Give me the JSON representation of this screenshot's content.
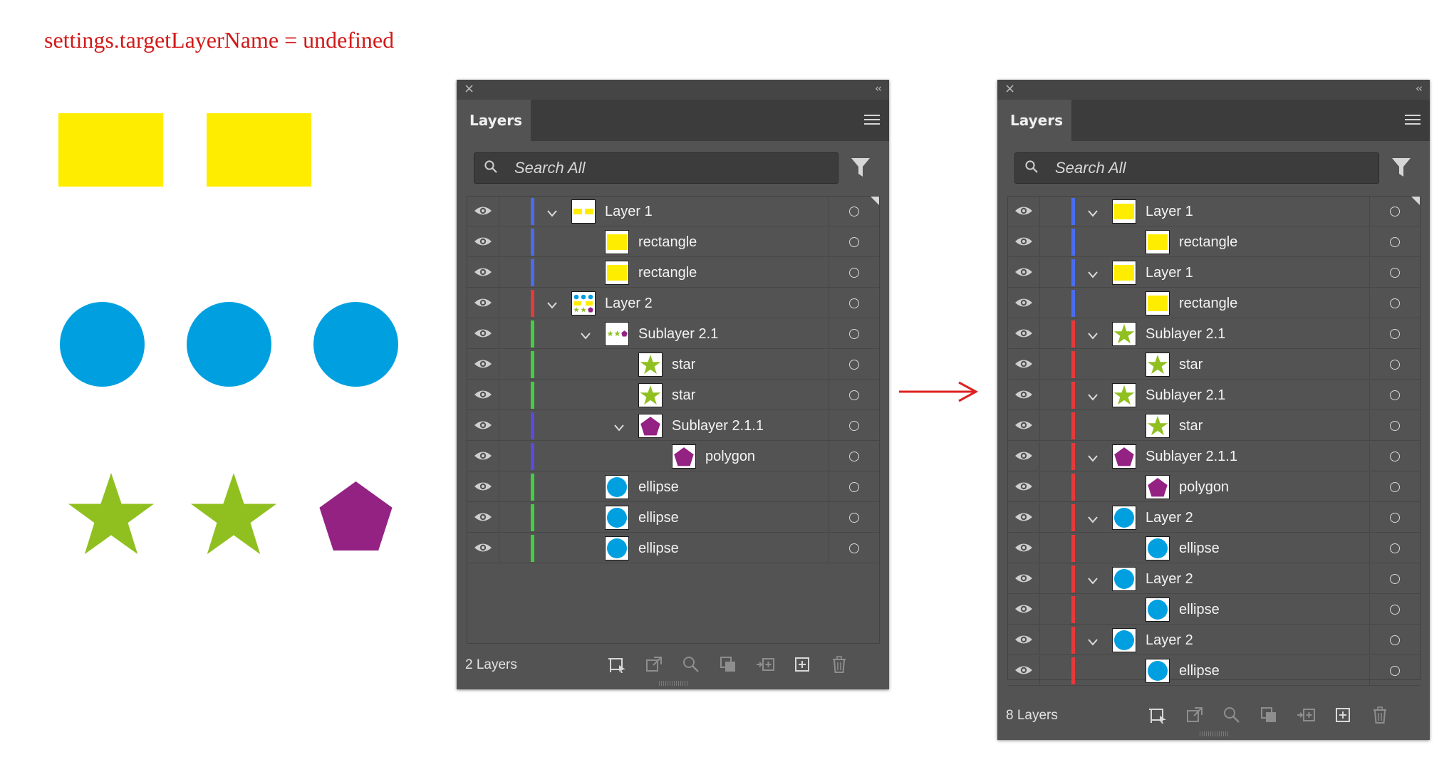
{
  "caption": "settings.targetLayerName = undefined",
  "colors": {
    "caption": "#d21a1a",
    "yellow": "#ffed00",
    "cyan": "#00a0e0",
    "green": "#90c020",
    "purple": "#932283",
    "layer_blue": "#4a6cf0",
    "layer_red": "#e63a3a",
    "layer_green": "#40d040",
    "layer_indigo": "#5a4ae0",
    "arrow": "#e02020"
  },
  "artboard_shapes": [
    {
      "type": "rectangle",
      "color": "yellow"
    },
    {
      "type": "rectangle",
      "color": "yellow"
    },
    {
      "type": "circle",
      "color": "cyan"
    },
    {
      "type": "circle",
      "color": "cyan"
    },
    {
      "type": "circle",
      "color": "cyan"
    },
    {
      "type": "star",
      "color": "green"
    },
    {
      "type": "star",
      "color": "green"
    },
    {
      "type": "pentagon",
      "color": "purple"
    }
  ],
  "panel_left": {
    "tab_label": "Layers",
    "search_placeholder": "Search All",
    "footer_count": "2 Layers",
    "rows": [
      {
        "label": "Layer 1",
        "depth": 0,
        "expandable": true,
        "thumb": "mini-rects",
        "bar": "layer_blue"
      },
      {
        "label": "rectangle",
        "depth": 1,
        "expandable": false,
        "thumb": "rect",
        "bar": "layer_blue"
      },
      {
        "label": "rectangle",
        "depth": 1,
        "expandable": false,
        "thumb": "rect",
        "bar": "layer_blue"
      },
      {
        "label": "Layer 2",
        "depth": 0,
        "expandable": true,
        "thumb": "mini-mixed",
        "bar": "layer_red"
      },
      {
        "label": "Sublayer 2.1",
        "depth": 1,
        "expandable": true,
        "thumb": "mini-stars",
        "bar": "layer_green"
      },
      {
        "label": "star",
        "depth": 2,
        "expandable": false,
        "thumb": "star",
        "bar": "layer_green"
      },
      {
        "label": "star",
        "depth": 2,
        "expandable": false,
        "thumb": "star",
        "bar": "layer_green"
      },
      {
        "label": "Sublayer 2.1.1",
        "depth": 2,
        "expandable": true,
        "thumb": "pentagon",
        "bar": "layer_indigo"
      },
      {
        "label": "polygon",
        "depth": 3,
        "expandable": false,
        "thumb": "pentagon",
        "bar": "layer_indigo"
      },
      {
        "label": "ellipse",
        "depth": 1,
        "expandable": false,
        "thumb": "circle",
        "bar": "layer_green"
      },
      {
        "label": "ellipse",
        "depth": 1,
        "expandable": false,
        "thumb": "circle",
        "bar": "layer_green"
      },
      {
        "label": "ellipse",
        "depth": 1,
        "expandable": false,
        "thumb": "circle",
        "bar": "layer_green"
      }
    ]
  },
  "panel_right": {
    "tab_label": "Layers",
    "search_placeholder": "Search All",
    "footer_count": "8 Layers",
    "rows": [
      {
        "label": "Layer 1",
        "depth": 0,
        "expandable": true,
        "thumb": "rect",
        "bar": "layer_blue"
      },
      {
        "label": "rectangle",
        "depth": 1,
        "expandable": false,
        "thumb": "rect",
        "bar": "layer_blue"
      },
      {
        "label": "Layer 1",
        "depth": 0,
        "expandable": true,
        "thumb": "rect",
        "bar": "layer_blue"
      },
      {
        "label": "rectangle",
        "depth": 1,
        "expandable": false,
        "thumb": "rect",
        "bar": "layer_blue"
      },
      {
        "label": "Sublayer 2.1",
        "depth": 0,
        "expandable": true,
        "thumb": "star",
        "bar": "layer_red"
      },
      {
        "label": "star",
        "depth": 1,
        "expandable": false,
        "thumb": "star",
        "bar": "layer_red"
      },
      {
        "label": "Sublayer 2.1",
        "depth": 0,
        "expandable": true,
        "thumb": "star",
        "bar": "layer_red"
      },
      {
        "label": "star",
        "depth": 1,
        "expandable": false,
        "thumb": "star",
        "bar": "layer_red"
      },
      {
        "label": "Sublayer 2.1.1",
        "depth": 0,
        "expandable": true,
        "thumb": "pentagon",
        "bar": "layer_red"
      },
      {
        "label": "polygon",
        "depth": 1,
        "expandable": false,
        "thumb": "pentagon",
        "bar": "layer_red"
      },
      {
        "label": "Layer 2",
        "depth": 0,
        "expandable": true,
        "thumb": "circle",
        "bar": "layer_red"
      },
      {
        "label": "ellipse",
        "depth": 1,
        "expandable": false,
        "thumb": "circle",
        "bar": "layer_red"
      },
      {
        "label": "Layer 2",
        "depth": 0,
        "expandable": true,
        "thumb": "circle",
        "bar": "layer_red"
      },
      {
        "label": "ellipse",
        "depth": 1,
        "expandable": false,
        "thumb": "circle",
        "bar": "layer_red"
      },
      {
        "label": "Layer 2",
        "depth": 0,
        "expandable": true,
        "thumb": "circle",
        "bar": "layer_red"
      },
      {
        "label": "ellipse",
        "depth": 1,
        "expandable": false,
        "thumb": "circle",
        "bar": "layer_red"
      }
    ]
  },
  "footer_icons": [
    "collect-for-export-icon",
    "export-icon",
    "locate-object-icon",
    "make-clipping-mask-icon",
    "create-sublayer-icon",
    "new-layer-icon",
    "delete-icon"
  ]
}
